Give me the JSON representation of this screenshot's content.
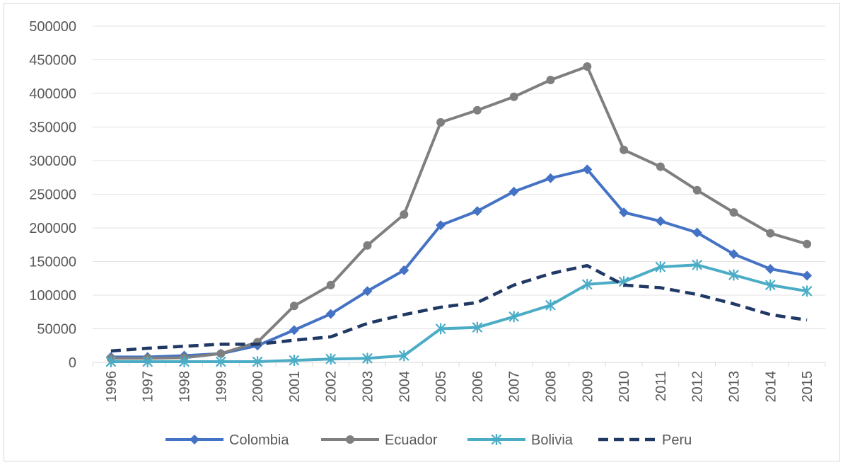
{
  "chart_data": {
    "type": "line",
    "title": "",
    "xlabel": "",
    "ylabel": "",
    "ylim": [
      0,
      500000
    ],
    "yticks": [
      "0",
      "50000",
      "100000",
      "150000",
      "200000",
      "250000",
      "300000",
      "350000",
      "400000",
      "450000",
      "500000"
    ],
    "grid": true,
    "legend_position": "bottom",
    "categories": [
      "1996",
      "1997",
      "1998",
      "1999",
      "2000",
      "2001",
      "2002",
      "2003",
      "2004",
      "2005",
      "2006",
      "2007",
      "2008",
      "2009",
      "2010",
      "2011",
      "2012",
      "2013",
      "2014",
      "2015"
    ],
    "series": [
      {
        "name": "Colombia",
        "color": "#4472c4",
        "marker": "diamond",
        "dash": "solid",
        "values": [
          8000,
          8000,
          10000,
          13000,
          25000,
          48000,
          72000,
          106000,
          137000,
          204000,
          225000,
          254000,
          274000,
          287000,
          223000,
          210000,
          193000,
          161000,
          139000,
          129000
        ]
      },
      {
        "name": "Ecuador",
        "color": "#7f7f7f",
        "marker": "circle",
        "dash": "solid",
        "values": [
          6000,
          6000,
          7000,
          13000,
          30000,
          84000,
          115000,
          174000,
          220000,
          357000,
          375000,
          395000,
          420000,
          440000,
          316000,
          291000,
          256000,
          223000,
          192000,
          176000
        ]
      },
      {
        "name": "Bolivia",
        "color": "#4bacc6",
        "marker": "asterisk",
        "dash": "solid",
        "values": [
          1000,
          1000,
          1000,
          1000,
          1000,
          3000,
          5000,
          6000,
          10000,
          50000,
          52000,
          68000,
          85000,
          116000,
          120000,
          142000,
          145000,
          130000,
          115000,
          106000
        ]
      },
      {
        "name": "Peru",
        "color": "#203864",
        "marker": "none",
        "dash": "dashed",
        "values": [
          17000,
          21000,
          24000,
          27000,
          27000,
          33000,
          38000,
          58000,
          71000,
          82000,
          89000,
          115000,
          132000,
          144000,
          115000,
          111000,
          101000,
          87000,
          71000,
          63000
        ]
      }
    ]
  }
}
